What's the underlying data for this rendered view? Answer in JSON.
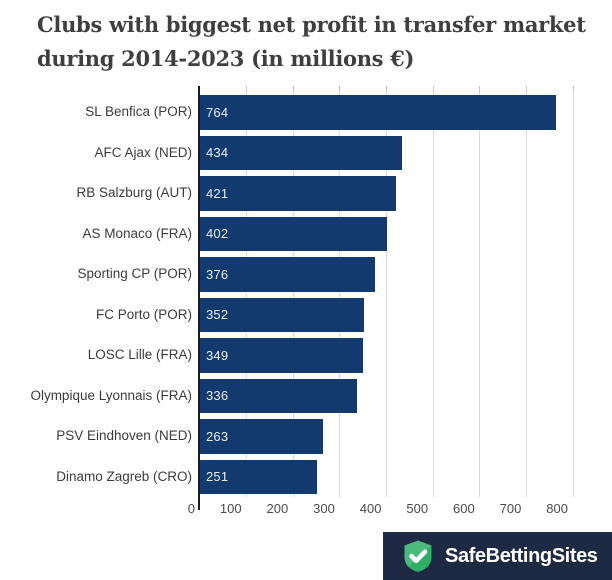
{
  "header": {
    "title_lines": [
      "Clubs with biggest net profit in transfer market",
      "during 2014-2023 (in millions €)"
    ],
    "title_color": "#3f3f3f"
  },
  "chart_data": {
    "type": "bar",
    "orientation": "horizontal",
    "title": "Clubs with biggest net profit in transfer market during 2014-2023 (in millions €)",
    "categories": [
      "SL Benfica (POR)",
      "AFC Ajax (NED)",
      "RB Salzburg (AUT)",
      "AS Monaco (FRA)",
      "Sporting CP (POR)",
      "FC Porto (POR)",
      "LOSC Lille (FRA)",
      "Olympique Lyonnais (FRA)",
      "PSV Eindhoven (NED)",
      "Dinamo Zagreb (CRO)"
    ],
    "values": [
      764,
      434,
      421,
      402,
      376,
      352,
      349,
      336,
      263,
      251
    ],
    "value_labels_shown": true,
    "x_ticks": [
      0,
      100,
      200,
      300,
      400,
      500,
      600,
      700,
      800
    ],
    "xlim": [
      0,
      800
    ],
    "xlabel": "",
    "ylabel": "",
    "grid": true,
    "legend": "none",
    "bar_color": "#133a6e",
    "value_label_color": "#e9f0fb",
    "gridline_color": "#dcdcdc",
    "axis_color": "#1c1c1c",
    "tick_label_color": "#4a4a4a"
  },
  "footer": {
    "brand": "SafeBettingSites",
    "logo_icon": "shield-check-icon",
    "background": "#1e2a44",
    "shield_green": "#2fae68",
    "check_color": "#ffffff"
  }
}
